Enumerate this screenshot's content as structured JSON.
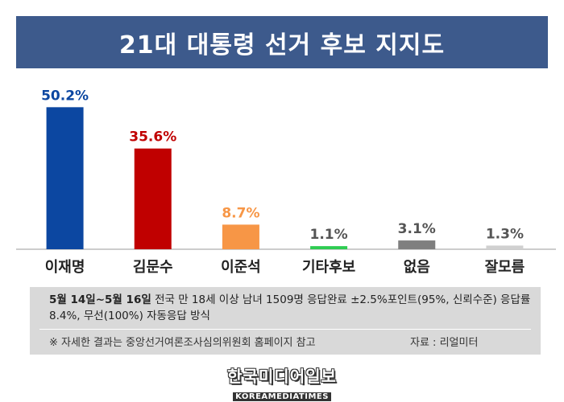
{
  "title": "21대 대통령 선거 후보 지지도",
  "chart_data": {
    "type": "bar",
    "categories": [
      "이재명",
      "김문수",
      "이준석",
      "기타후보",
      "없음",
      "잘모름"
    ],
    "values": [
      50.2,
      35.6,
      8.7,
      1.1,
      3.1,
      1.3
    ],
    "value_labels": [
      "50.2%",
      "35.6%",
      "8.7%",
      "1.1%",
      "3.1%",
      "1.3%"
    ],
    "colors": [
      "#0c47a1",
      "#c00000",
      "#f79646",
      "#2ecc51",
      "#7f7f7f",
      "#d0d0d0"
    ],
    "label_colors": [
      "#0c47a1",
      "#c00000",
      "#f79646",
      "#555555",
      "#555555",
      "#555555"
    ],
    "ylim": [
      0,
      52
    ],
    "grid": false
  },
  "notes": {
    "period": "5월 14일~5월 16일",
    "method": "전국 만 18세 이상 남녀 1509명 응답완료 ±2.5%포인트(95%, 신뢰수준) 응답률 8.4%, 무선(100%) 자동응답 방식",
    "reference": "※ 자세한 결과는 중앙선거여론조사심의위원회 홈페이지 참고",
    "source": "자료 : 리얼미터"
  },
  "logo": {
    "korean": "한국미디어일보",
    "english": "KOREAMEDIATIMES"
  }
}
